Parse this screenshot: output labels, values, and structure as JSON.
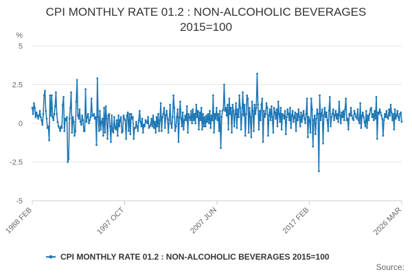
{
  "chart_data": {
    "type": "line",
    "title_line1": "CPI MONTHLY RATE 01.2 : NON-ALCOHOLIC BEVERAGES",
    "title_line2": "2015=100",
    "unit_label": "%",
    "ylim": [
      -5,
      5
    ],
    "yticks": [
      {
        "value": 5,
        "label": "5"
      },
      {
        "value": 2.5,
        "label": "2.5"
      },
      {
        "value": 0,
        "label": "0"
      },
      {
        "value": -2.5,
        "label": "-2.5"
      },
      {
        "value": -5,
        "label": "-5"
      }
    ],
    "x_start": "1988 FEB",
    "x_end": "2026 MAR",
    "xticks": [
      "1988 FEB",
      "1997 OCT",
      "2007 JUN",
      "2017 FEB",
      "2026 MAR"
    ],
    "grid": true,
    "legend_position": "bottom",
    "series": [
      {
        "name": "CPI MONTHLY RATE 01.2 : NON-ALCOHOLIC BEVERAGES 2015=100",
        "color": "#1f77b4",
        "values": [
          1.0,
          0.6,
          1.3,
          1.0,
          0.4,
          0.7,
          0.5,
          0.3,
          0.5,
          0.8,
          0.4,
          0.2,
          -0.1,
          0.6,
          1.8,
          2.1,
          0.8,
          0.3,
          -0.3,
          -0.2,
          -1.1,
          1.8,
          0.5,
          1.8,
          0.4,
          0.2,
          0.6,
          1.1,
          2.0,
          0.6,
          0.1,
          -0.2,
          -0.3,
          -0.5,
          -0.2,
          -0.3,
          1.2,
          1.7,
          -0.5,
          0.3,
          0.2,
          0.4,
          -2.5,
          -2.3,
          0.3,
          1.0,
          2.0,
          -0.6,
          0.4,
          0.1,
          -0.8,
          -0.5,
          1.4,
          2.8,
          0.5,
          0.3,
          0.9,
          0.1,
          -0.1,
          0.5,
          0.2,
          -0.5,
          -0.5,
          2.2,
          0.1,
          0.4,
          0.6,
          0.0,
          0.2,
          0.4,
          1.6,
          0.5,
          0.5,
          0.6,
          0.3,
          0.4,
          -1.4,
          2.9,
          0.4,
          -0.5,
          0.8,
          -0.4,
          0.1,
          0.3,
          -0.8,
          1.0,
          -0.6,
          1.1,
          0.3,
          -1.0,
          0.5,
          0.6,
          -0.2,
          -1.2,
          0.5,
          -0.5,
          -0.6,
          0.4,
          -0.3,
          -0.4,
          0.2,
          -0.8,
          0.5,
          -0.2,
          0.2,
          0.4,
          -0.6,
          -0.5,
          0.5,
          0.3,
          0.2,
          -1.0,
          0.5,
          0.7,
          -0.5,
          0.6,
          -0.7,
          0.6,
          0.3,
          0.4,
          -1.0,
          -0.3,
          -0.3,
          0.1,
          -0.2,
          -0.5,
          0.2,
          0.8,
          0.1,
          -0.2,
          0.3,
          -0.6,
          -0.1,
          -0.2,
          0.2,
          0.1,
          0.0,
          0.4,
          -0.3,
          -0.2,
          -0.1,
          0.3,
          -0.2,
          0.5,
          -0.3,
          0.1,
          -0.6,
          0.4,
          -0.2,
          0.6,
          -0.5,
          0.2,
          1.3,
          -0.5,
          0.4,
          0.6,
          1.0,
          -0.3,
          0.5,
          0.8,
          0.3,
          -0.6,
          0.2,
          1.2,
          0.0,
          -0.3,
          0.4,
          1.8,
          1.0,
          -0.5,
          -0.2,
          0.4,
          0.9,
          -1.2,
          0.4,
          1.4,
          0.3,
          -0.2,
          0.7,
          -0.4,
          0.2,
          0.5,
          0.2,
          1.1,
          -0.6,
          0.6,
          0.4,
          0.2,
          0.8,
          0.0,
          0.9,
          0.2,
          0.6,
          0.0,
          1.2,
          0.4,
          0.8,
          -0.4,
          0.7,
          0.2,
          1.0,
          -0.4,
          0.6,
          -0.2,
          0.4,
          -0.2,
          0.5,
          0.1,
          0.6,
          0.0,
          0.8,
          -0.3,
          0.5,
          0.2,
          1.8,
          -0.6,
          0.6,
          0.3,
          1.0,
          0.2,
          0.6,
          -0.5,
          0.8,
          -1.6,
          0.4,
          0.8,
          0.9,
          2.5,
          0.8,
          1.0,
          0.5,
          1.2,
          -0.4,
          1.6,
          0.6,
          1.0,
          -0.6,
          1.2,
          0.8,
          -0.2,
          0.6,
          1.3,
          -0.3,
          0.9,
          0.4,
          1.8,
          1.0,
          -0.4,
          0.6,
          2.0,
          0.5,
          1.2,
          -0.8,
          0.6,
          1.8,
          1.6,
          -0.6,
          1.0,
          0.4,
          -0.9,
          1.4,
          0.8,
          -0.5,
          1.2,
          0.6,
          1.0,
          3.2,
          1.2,
          -0.4,
          0.8,
          0.2,
          1.2,
          1.6,
          -1.2,
          0.8,
          0.4,
          0.6,
          1.3,
          1.0,
          -0.8,
          0.5,
          0.9,
          0.2,
          1.1,
          0.4,
          -0.6,
          1.0,
          0.7,
          0.3,
          0.9,
          -0.2,
          1.4,
          0.6,
          0.1,
          1.0,
          -0.4,
          0.6,
          0.5,
          0.3,
          0.8,
          -0.7,
          0.4,
          0.9,
          0.6,
          0.2,
          1.0,
          -0.3,
          0.5,
          0.8,
          0.1,
          0.4,
          0.7,
          -0.5,
          0.6,
          0.2,
          0.9,
          0.4,
          -0.2,
          0.7,
          0.1,
          0.5,
          0.8,
          0.3,
          0.0,
          0.6,
          1.6,
          -0.9,
          0.4,
          0.2,
          -0.6,
          1.6,
          0.9,
          -1.5,
          0.2,
          0.5,
          -0.7,
          0.3,
          0.9,
          0.6,
          -3.1,
          1.8,
          0.2,
          0.6,
          0.9,
          -1.3,
          0.5,
          1.0,
          0.4,
          0.7,
          0.2,
          -0.5,
          0.8,
          1.7,
          -0.2,
          0.4,
          0.6,
          0.9,
          0.2,
          0.5,
          0.8,
          0.3,
          0.6,
          0.1,
          1.4,
          0.5,
          0.0,
          0.7,
          0.4,
          0.8,
          0.2,
          0.9,
          1.6,
          0.2,
          0.3,
          -0.4,
          0.6,
          0.5,
          1.0,
          0.5,
          0.3,
          0.2,
          0.8,
          0.6,
          0.4,
          0.3,
          0.9,
          0.2,
          0.0,
          1.3,
          -0.3,
          0.5,
          0.7,
          0.4,
          0.1,
          -0.2,
          0.8,
          -0.3,
          0.5,
          0.2,
          0.6,
          0.9,
          1.0,
          0.4,
          0.6,
          0.2,
          0.8,
          0.3,
          1.7,
          -1.0,
          0.7,
          0.6,
          0.9,
          0.7,
          0.5,
          0.3,
          -0.8,
          0.2,
          0.6,
          0.4,
          0.8,
          0.4,
          0.3,
          0.9,
          0.5,
          1.2,
          0.7,
          0.2,
          0.6,
          -0.4,
          0.9,
          0.3,
          0.5,
          0.8,
          0.4,
          0.2,
          0.6,
          0.7,
          0.1
        ]
      }
    ]
  },
  "source_label": "Source:"
}
